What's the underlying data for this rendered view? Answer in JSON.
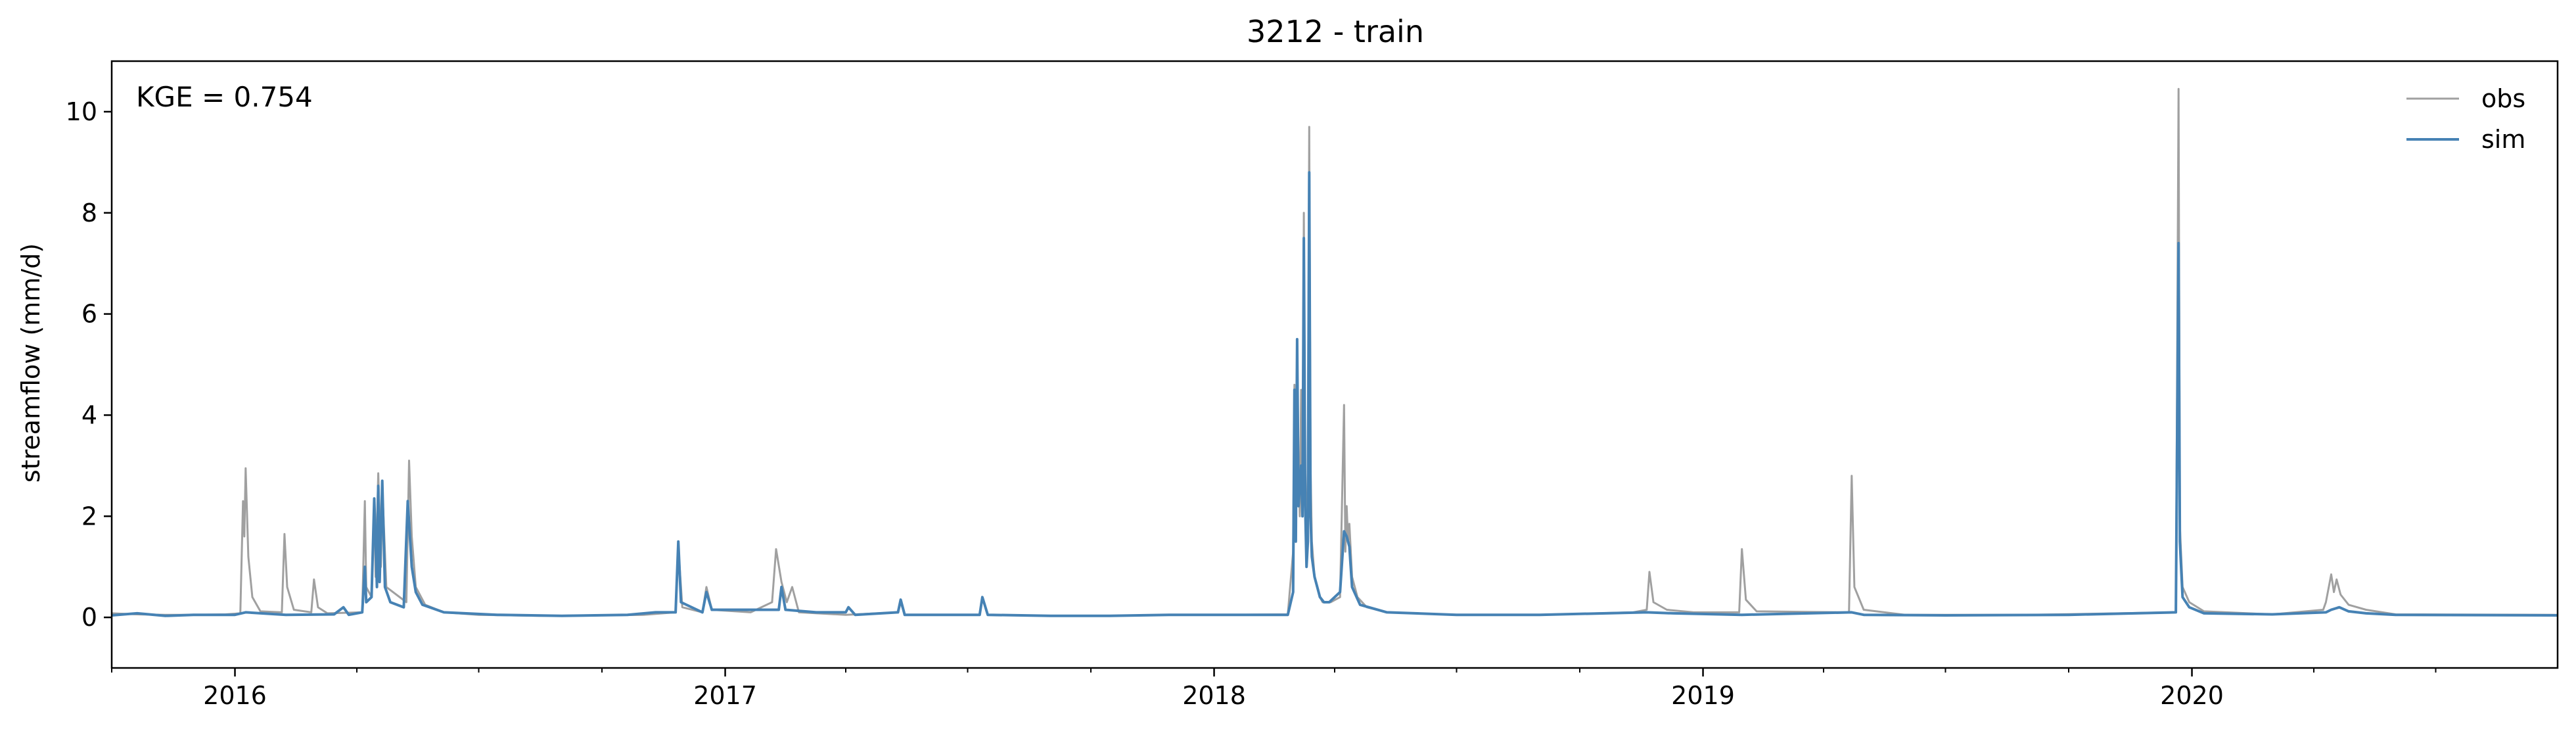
{
  "chart_data": {
    "type": "line",
    "title": "3212 - train",
    "xlabel": "",
    "ylabel": "streamflow (mm/d)",
    "annotation": "KGE = 0.754",
    "xlim": [
      "2015-10-01",
      "2020-09-30"
    ],
    "ylim": [
      -1.0,
      11.0
    ],
    "xticks": [
      {
        "date": "2016-01-01",
        "label": "2016"
      },
      {
        "date": "2017-01-01",
        "label": "2017"
      },
      {
        "date": "2018-01-01",
        "label": "2018"
      },
      {
        "date": "2019-01-01",
        "label": "2019"
      },
      {
        "date": "2020-01-01",
        "label": "2020"
      }
    ],
    "yticks": [
      0,
      2,
      4,
      6,
      8,
      10
    ],
    "grid": false,
    "legend_position": "top-right",
    "series": [
      {
        "name": "obs",
        "color": "#a0a0a0",
        "points": [
          [
            "2015-10-01",
            0.08
          ],
          [
            "2015-10-20",
            0.06
          ],
          [
            "2015-11-10",
            0.05
          ],
          [
            "2015-12-01",
            0.05
          ],
          [
            "2015-12-25",
            0.06
          ],
          [
            "2016-01-05",
            0.08
          ],
          [
            "2016-01-07",
            2.3
          ],
          [
            "2016-01-08",
            1.6
          ],
          [
            "2016-01-09",
            2.95
          ],
          [
            "2016-01-11",
            1.2
          ],
          [
            "2016-01-14",
            0.4
          ],
          [
            "2016-01-20",
            0.12
          ],
          [
            "2016-02-05",
            0.1
          ],
          [
            "2016-02-07",
            1.65
          ],
          [
            "2016-02-09",
            0.6
          ],
          [
            "2016-02-14",
            0.15
          ],
          [
            "2016-02-27",
            0.1
          ],
          [
            "2016-02-29",
            0.75
          ],
          [
            "2016-03-03",
            0.2
          ],
          [
            "2016-03-10",
            0.08
          ],
          [
            "2016-04-05",
            0.1
          ],
          [
            "2016-04-07",
            2.3
          ],
          [
            "2016-04-08",
            0.6
          ],
          [
            "2016-04-12",
            0.4
          ],
          [
            "2016-04-14",
            2.3
          ],
          [
            "2016-04-15",
            0.8
          ],
          [
            "2016-04-17",
            2.85
          ],
          [
            "2016-04-19",
            1.0
          ],
          [
            "2016-04-20",
            2.6
          ],
          [
            "2016-04-23",
            0.6
          ],
          [
            "2016-05-08",
            0.3
          ],
          [
            "2016-05-10",
            3.1
          ],
          [
            "2016-05-12",
            1.6
          ],
          [
            "2016-05-15",
            0.6
          ],
          [
            "2016-05-22",
            0.25
          ],
          [
            "2016-06-05",
            0.1
          ],
          [
            "2016-07-01",
            0.05
          ],
          [
            "2016-08-15",
            0.03
          ],
          [
            "2016-10-01",
            0.04
          ],
          [
            "2016-11-01",
            0.05
          ],
          [
            "2016-11-25",
            0.1
          ],
          [
            "2016-11-27",
            1.4
          ],
          [
            "2016-11-30",
            0.2
          ],
          [
            "2016-12-15",
            0.1
          ],
          [
            "2016-12-18",
            0.6
          ],
          [
            "2016-12-22",
            0.15
          ],
          [
            "2017-01-20",
            0.1
          ],
          [
            "2017-02-05",
            0.3
          ],
          [
            "2017-02-08",
            1.35
          ],
          [
            "2017-02-12",
            0.7
          ],
          [
            "2017-02-16",
            0.3
          ],
          [
            "2017-02-20",
            0.6
          ],
          [
            "2017-02-25",
            0.1
          ],
          [
            "2017-04-01",
            0.05
          ],
          [
            "2017-05-10",
            0.1
          ],
          [
            "2017-05-12",
            0.3
          ],
          [
            "2017-05-15",
            0.05
          ],
          [
            "2017-07-10",
            0.05
          ],
          [
            "2017-07-12",
            0.4
          ],
          [
            "2017-07-16",
            0.05
          ],
          [
            "2017-09-01",
            0.03
          ],
          [
            "2017-10-15",
            0.03
          ],
          [
            "2017-12-01",
            0.05
          ],
          [
            "2018-01-10",
            0.05
          ],
          [
            "2018-02-25",
            0.06
          ],
          [
            "2018-03-01",
            1.3
          ],
          [
            "2018-03-02",
            4.6
          ],
          [
            "2018-03-03",
            2.0
          ],
          [
            "2018-03-04",
            5.5
          ],
          [
            "2018-03-05",
            3.0
          ],
          [
            "2018-03-06",
            2.0
          ],
          [
            "2018-03-07",
            4.5
          ],
          [
            "2018-03-08",
            2.6
          ],
          [
            "2018-03-09",
            8.0
          ],
          [
            "2018-03-10",
            2.5
          ],
          [
            "2018-03-11",
            1.5
          ],
          [
            "2018-03-12",
            3.0
          ],
          [
            "2018-03-13",
            9.7
          ],
          [
            "2018-03-14",
            3.0
          ],
          [
            "2018-03-15",
            1.5
          ],
          [
            "2018-03-17",
            0.8
          ],
          [
            "2018-03-19",
            0.6
          ],
          [
            "2018-03-21",
            0.4
          ],
          [
            "2018-03-23",
            0.3
          ],
          [
            "2018-03-26",
            0.3
          ],
          [
            "2018-03-29",
            0.3
          ],
          [
            "2018-04-05",
            0.4
          ],
          [
            "2018-04-08",
            4.2
          ],
          [
            "2018-04-09",
            1.3
          ],
          [
            "2018-04-10",
            2.2
          ],
          [
            "2018-04-11",
            1.5
          ],
          [
            "2018-04-12",
            1.85
          ],
          [
            "2018-04-14",
            0.8
          ],
          [
            "2018-04-18",
            0.4
          ],
          [
            "2018-04-25",
            0.2
          ],
          [
            "2018-05-10",
            0.1
          ],
          [
            "2018-07-01",
            0.05
          ],
          [
            "2018-09-01",
            0.05
          ],
          [
            "2018-11-10",
            0.1
          ],
          [
            "2018-11-20",
            0.15
          ],
          [
            "2018-11-22",
            0.9
          ],
          [
            "2018-11-25",
            0.3
          ],
          [
            "2018-12-05",
            0.15
          ],
          [
            "2018-12-25",
            0.1
          ],
          [
            "2019-01-28",
            0.1
          ],
          [
            "2019-01-30",
            1.35
          ],
          [
            "2019-02-02",
            0.35
          ],
          [
            "2019-02-10",
            0.12
          ],
          [
            "2019-04-20",
            0.1
          ],
          [
            "2019-04-22",
            2.8
          ],
          [
            "2019-04-24",
            0.6
          ],
          [
            "2019-05-01",
            0.15
          ],
          [
            "2019-06-01",
            0.05
          ],
          [
            "2019-09-01",
            0.05
          ],
          [
            "2019-12-20",
            0.1
          ],
          [
            "2019-12-22",
            10.45
          ],
          [
            "2019-12-23",
            1.8
          ],
          [
            "2019-12-25",
            0.6
          ],
          [
            "2019-12-30",
            0.3
          ],
          [
            "2020-01-10",
            0.12
          ],
          [
            "2020-03-01",
            0.06
          ],
          [
            "2020-04-08",
            0.15
          ],
          [
            "2020-04-10",
            0.3
          ],
          [
            "2020-04-14",
            0.85
          ],
          [
            "2020-04-16",
            0.5
          ],
          [
            "2020-04-18",
            0.75
          ],
          [
            "2020-04-21",
            0.45
          ],
          [
            "2020-04-27",
            0.25
          ],
          [
            "2020-05-10",
            0.15
          ],
          [
            "2020-06-01",
            0.06
          ],
          [
            "2020-09-30",
            0.05
          ]
        ]
      },
      {
        "name": "sim",
        "color": "#4682b4",
        "points": [
          [
            "2015-10-01",
            0.04
          ],
          [
            "2015-10-20",
            0.08
          ],
          [
            "2015-11-10",
            0.03
          ],
          [
            "2015-12-01",
            0.05
          ],
          [
            "2016-01-01",
            0.05
          ],
          [
            "2016-01-09",
            0.1
          ],
          [
            "2016-02-08",
            0.05
          ],
          [
            "2016-03-15",
            0.06
          ],
          [
            "2016-03-22",
            0.2
          ],
          [
            "2016-03-26",
            0.05
          ],
          [
            "2016-04-05",
            0.1
          ],
          [
            "2016-04-07",
            1.0
          ],
          [
            "2016-04-08",
            0.3
          ],
          [
            "2016-04-12",
            0.4
          ],
          [
            "2016-04-14",
            2.35
          ],
          [
            "2016-04-16",
            0.6
          ],
          [
            "2016-04-17",
            2.6
          ],
          [
            "2016-04-18",
            0.7
          ],
          [
            "2016-04-20",
            2.7
          ],
          [
            "2016-04-22",
            0.6
          ],
          [
            "2016-04-26",
            0.3
          ],
          [
            "2016-05-06",
            0.2
          ],
          [
            "2016-05-09",
            2.3
          ],
          [
            "2016-05-12",
            1.0
          ],
          [
            "2016-05-15",
            0.5
          ],
          [
            "2016-05-20",
            0.25
          ],
          [
            "2016-06-05",
            0.1
          ],
          [
            "2016-07-15",
            0.05
          ],
          [
            "2016-09-01",
            0.03
          ],
          [
            "2016-10-20",
            0.05
          ],
          [
            "2016-11-10",
            0.1
          ],
          [
            "2016-11-25",
            0.1
          ],
          [
            "2016-11-27",
            1.5
          ],
          [
            "2016-11-29",
            0.3
          ],
          [
            "2016-12-15",
            0.1
          ],
          [
            "2016-12-18",
            0.5
          ],
          [
            "2016-12-22",
            0.15
          ],
          [
            "2017-02-10",
            0.15
          ],
          [
            "2017-02-12",
            0.6
          ],
          [
            "2017-02-15",
            0.15
          ],
          [
            "2017-03-10",
            0.1
          ],
          [
            "2017-04-01",
            0.1
          ],
          [
            "2017-04-03",
            0.2
          ],
          [
            "2017-04-08",
            0.05
          ],
          [
            "2017-05-10",
            0.1
          ],
          [
            "2017-05-12",
            0.35
          ],
          [
            "2017-05-15",
            0.05
          ],
          [
            "2017-07-10",
            0.05
          ],
          [
            "2017-07-12",
            0.4
          ],
          [
            "2017-07-16",
            0.05
          ],
          [
            "2017-09-01",
            0.03
          ],
          [
            "2017-10-15",
            0.03
          ],
          [
            "2017-12-01",
            0.05
          ],
          [
            "2018-01-10",
            0.05
          ],
          [
            "2018-02-25",
            0.05
          ],
          [
            "2018-03-01",
            0.5
          ],
          [
            "2018-03-02",
            4.5
          ],
          [
            "2018-03-03",
            1.5
          ],
          [
            "2018-03-04",
            5.5
          ],
          [
            "2018-03-05",
            2.2
          ],
          [
            "2018-03-07",
            3.0
          ],
          [
            "2018-03-08",
            2.0
          ],
          [
            "2018-03-09",
            7.5
          ],
          [
            "2018-03-10",
            2.2
          ],
          [
            "2018-03-11",
            1.0
          ],
          [
            "2018-03-12",
            1.5
          ],
          [
            "2018-03-13",
            8.8
          ],
          [
            "2018-03-14",
            2.0
          ],
          [
            "2018-03-15",
            1.2
          ],
          [
            "2018-03-17",
            0.8
          ],
          [
            "2018-03-19",
            0.6
          ],
          [
            "2018-03-21",
            0.4
          ],
          [
            "2018-03-24",
            0.3
          ],
          [
            "2018-03-28",
            0.3
          ],
          [
            "2018-04-05",
            0.5
          ],
          [
            "2018-04-08",
            1.7
          ],
          [
            "2018-04-10",
            1.6
          ],
          [
            "2018-04-12",
            1.4
          ],
          [
            "2018-04-14",
            0.6
          ],
          [
            "2018-04-20",
            0.25
          ],
          [
            "2018-05-10",
            0.1
          ],
          [
            "2018-07-01",
            0.05
          ],
          [
            "2018-09-01",
            0.05
          ],
          [
            "2018-11-20",
            0.1
          ],
          [
            "2018-12-10",
            0.08
          ],
          [
            "2019-01-30",
            0.05
          ],
          [
            "2019-04-22",
            0.1
          ],
          [
            "2019-05-01",
            0.05
          ],
          [
            "2019-07-01",
            0.04
          ],
          [
            "2019-10-01",
            0.05
          ],
          [
            "2019-12-20",
            0.1
          ],
          [
            "2019-12-22",
            7.4
          ],
          [
            "2019-12-23",
            1.5
          ],
          [
            "2019-12-25",
            0.4
          ],
          [
            "2019-12-30",
            0.2
          ],
          [
            "2020-01-10",
            0.08
          ],
          [
            "2020-03-01",
            0.06
          ],
          [
            "2020-04-10",
            0.1
          ],
          [
            "2020-04-14",
            0.15
          ],
          [
            "2020-04-20",
            0.2
          ],
          [
            "2020-04-27",
            0.12
          ],
          [
            "2020-05-10",
            0.08
          ],
          [
            "2020-06-01",
            0.05
          ],
          [
            "2020-09-30",
            0.04
          ]
        ]
      }
    ]
  }
}
